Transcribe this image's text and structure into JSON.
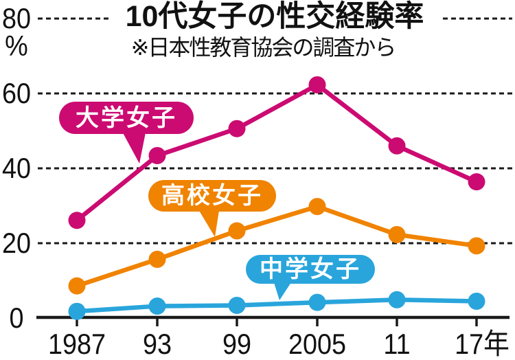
{
  "chart_data": {
    "type": "line",
    "title": "10代女子の性交経験率",
    "subtitle": "※日本性教育協会の調査から",
    "unit": "%",
    "categories": [
      "1987",
      "93",
      "99",
      "2005",
      "11",
      "17年"
    ],
    "y_ticks": [
      0,
      20,
      40,
      60,
      80
    ],
    "ylim": [
      0,
      80
    ],
    "grid": "horizontal-dashed",
    "legend_position": "on-chart-bubbles",
    "ink_color": "#1a1a1a",
    "background": "#ffffff",
    "series": [
      {
        "name": "大学女子",
        "key": "university-girls",
        "color": "#cb0b72",
        "values": [
          26.1,
          43.4,
          50.6,
          62.3,
          46.0,
          36.4
        ]
      },
      {
        "name": "高校女子",
        "key": "highschool-girls",
        "color": "#f08300",
        "values": [
          8.6,
          15.7,
          23.3,
          29.8,
          22.3,
          19.3
        ]
      },
      {
        "name": "中学女子",
        "key": "middleschool-girls",
        "color": "#29a5dc",
        "values": [
          1.8,
          3.2,
          3.4,
          4.2,
          4.9,
          4.5
        ]
      }
    ]
  }
}
